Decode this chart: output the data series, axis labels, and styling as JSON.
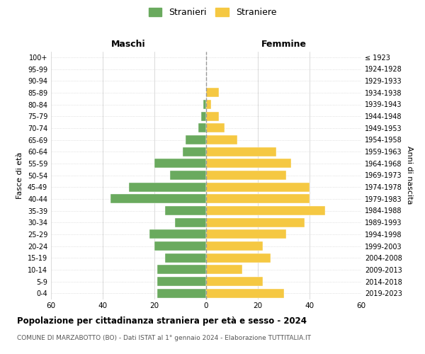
{
  "age_groups": [
    "100+",
    "95-99",
    "90-94",
    "85-89",
    "80-84",
    "75-79",
    "70-74",
    "65-69",
    "60-64",
    "55-59",
    "50-54",
    "45-49",
    "40-44",
    "35-39",
    "30-34",
    "25-29",
    "20-24",
    "15-19",
    "10-14",
    "5-9",
    "0-4"
  ],
  "birth_years": [
    "≤ 1923",
    "1924-1928",
    "1929-1933",
    "1934-1938",
    "1939-1943",
    "1944-1948",
    "1949-1953",
    "1954-1958",
    "1959-1963",
    "1964-1968",
    "1969-1973",
    "1974-1978",
    "1979-1983",
    "1984-1988",
    "1989-1993",
    "1994-1998",
    "1999-2003",
    "2004-2008",
    "2009-2013",
    "2014-2018",
    "2019-2023"
  ],
  "maschi": [
    0,
    0,
    0,
    0,
    1,
    2,
    3,
    8,
    9,
    20,
    14,
    30,
    37,
    16,
    12,
    22,
    20,
    16,
    19,
    19,
    19
  ],
  "femmine": [
    0,
    0,
    0,
    5,
    2,
    5,
    7,
    12,
    27,
    33,
    31,
    40,
    40,
    46,
    38,
    31,
    22,
    25,
    14,
    22,
    30
  ],
  "color_maschi": "#6aaa5e",
  "color_femmine": "#f5c842",
  "title": "Popolazione per cittadinanza straniera per età e sesso - 2024",
  "subtitle": "COMUNE DI MARZABOTTO (BO) - Dati ISTAT al 1° gennaio 2024 - Elaborazione TUTTITALIA.IT",
  "label_maschi": "Maschi",
  "label_femmine": "Femmine",
  "legend_stranieri": "Stranieri",
  "legend_straniere": "Straniere",
  "ylabel_left": "Fasce di età",
  "ylabel_right": "Anni di nascita",
  "xlim": 60,
  "background_color": "#ffffff"
}
